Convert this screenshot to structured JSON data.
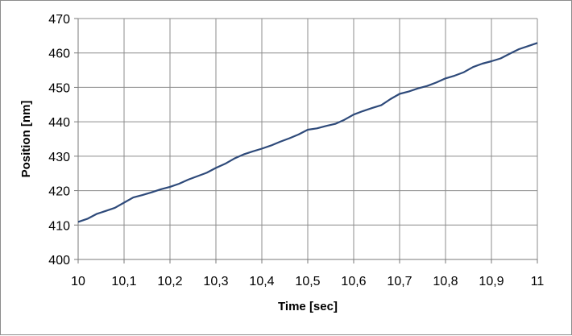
{
  "chart_data": {
    "type": "line",
    "title": "",
    "xlabel": "Time [sec]",
    "ylabel": "Position [nm]",
    "xlim": [
      10,
      11
    ],
    "ylim": [
      400,
      470
    ],
    "x_ticks": [
      "10",
      "10,1",
      "10,2",
      "10,3",
      "10,4",
      "10,5",
      "10,6",
      "10,7",
      "10,8",
      "10,9",
      "11"
    ],
    "y_ticks": [
      "400",
      "410",
      "420",
      "430",
      "440",
      "450",
      "460",
      "470"
    ],
    "grid": true,
    "legend": "none",
    "line_color": "#2e4a7a",
    "series": [
      {
        "x": [
          10.0,
          10.02,
          10.04,
          10.06,
          10.08,
          10.1,
          10.12,
          10.14,
          10.16,
          10.18,
          10.2,
          10.22,
          10.24,
          10.26,
          10.28,
          10.3,
          10.32,
          10.34,
          10.36,
          10.38,
          10.4,
          10.42,
          10.44,
          10.46,
          10.48,
          10.5,
          10.52,
          10.54,
          10.56,
          10.58,
          10.6,
          10.62,
          10.64,
          10.66,
          10.68,
          10.7,
          10.72,
          10.74,
          10.76,
          10.78,
          10.8,
          10.82,
          10.84,
          10.86,
          10.88,
          10.9,
          10.92,
          10.94,
          10.96,
          10.98,
          11.0
        ],
        "y": [
          410.9,
          411.8,
          413.2,
          414.1,
          415.0,
          416.5,
          418.0,
          418.7,
          419.5,
          420.4,
          421.1,
          422.0,
          423.2,
          424.2,
          425.2,
          426.6,
          427.8,
          429.3,
          430.5,
          431.4,
          432.2,
          433.1,
          434.2,
          435.2,
          436.3,
          437.7,
          438.1,
          438.8,
          439.4,
          440.6,
          442.1,
          443.1,
          444.0,
          444.8,
          446.6,
          448.1,
          448.8,
          449.7,
          450.4,
          451.4,
          452.6,
          453.4,
          454.4,
          455.9,
          456.9,
          457.6,
          458.4,
          459.8,
          461.1,
          462.0,
          462.9
        ]
      }
    ]
  }
}
